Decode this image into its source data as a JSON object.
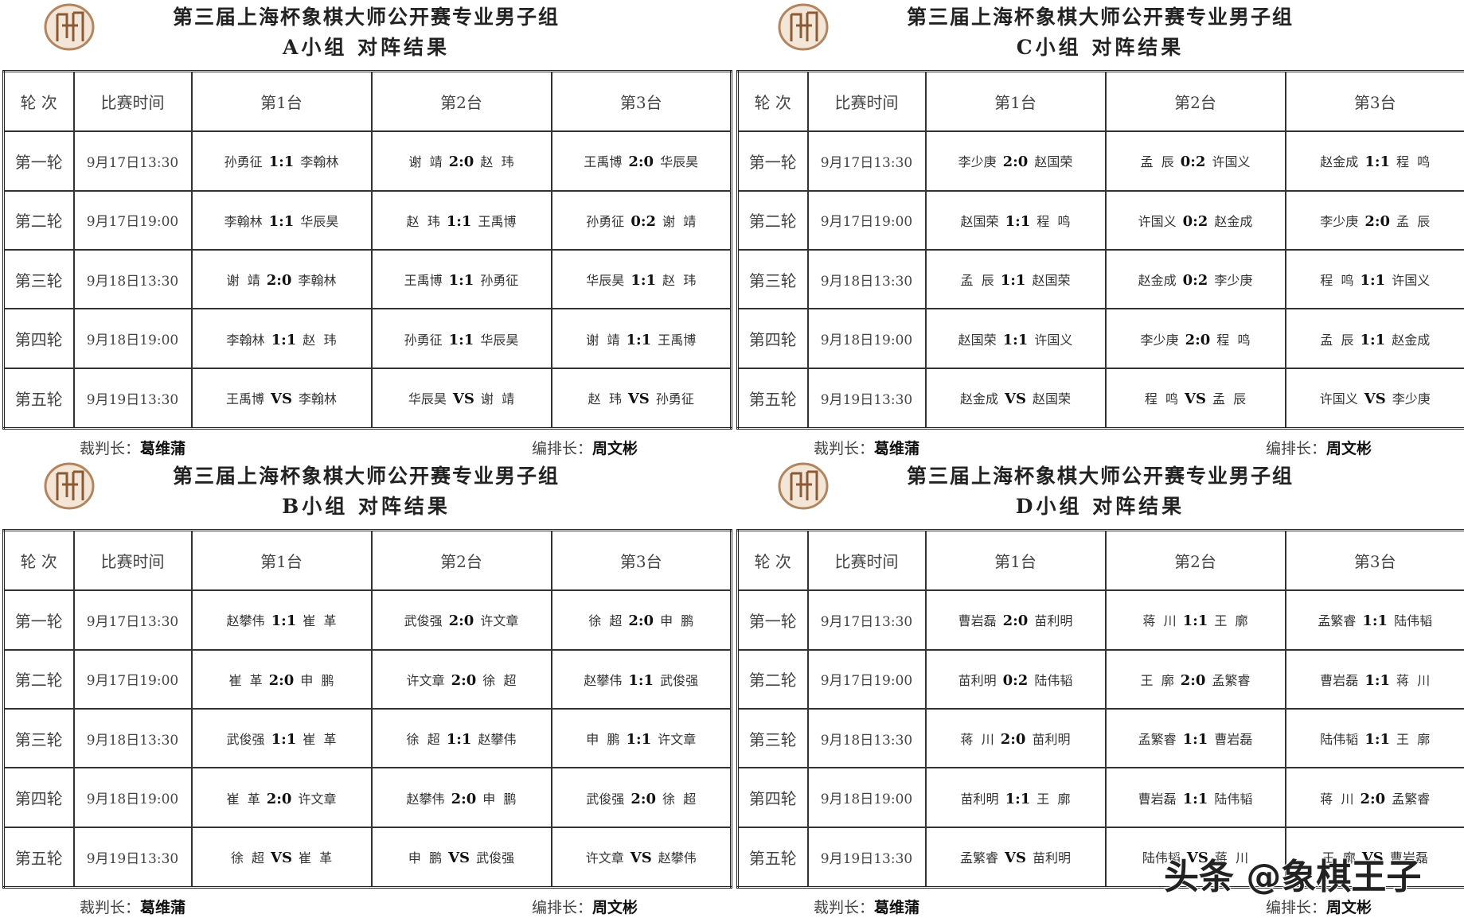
{
  "groups": [
    {
      "title": "第三届上海杯象棋大师公开赛专业男子组",
      "subtitle": "A小组 对阵结果",
      "header": [
        "轮 次",
        "比赛时间",
        "第1台",
        "第2台",
        "第3台"
      ],
      "rows": [
        {
          "round": "第一轮",
          "time": "9月17日13:30",
          "boards": [
            {
              "p1": "孙勇征",
              "score": "1:1",
              "p2": "李翰林"
            },
            {
              "p1": "谢  靖",
              "score": "2:0",
              "p2": "赵  玮"
            },
            {
              "p1": "王禹博",
              "score": "2:0",
              "p2": "华辰昊"
            }
          ]
        },
        {
          "round": "第二轮",
          "time": "9月17日19:00",
          "boards": [
            {
              "p1": "李翰林",
              "score": "1:1",
              "p2": "华辰昊"
            },
            {
              "p1": "赵  玮",
              "score": "1:1",
              "p2": "王禹博"
            },
            {
              "p1": "孙勇征",
              "score": "0:2",
              "p2": "谢  靖"
            }
          ]
        },
        {
          "round": "第三轮",
          "time": "9月18日13:30",
          "boards": [
            {
              "p1": "谢  靖",
              "score": "2:0",
              "p2": "李翰林"
            },
            {
              "p1": "王禹博",
              "score": "1:1",
              "p2": "孙勇征"
            },
            {
              "p1": "华辰昊",
              "score": "1:1",
              "p2": "赵  玮"
            }
          ]
        },
        {
          "round": "第四轮",
          "time": "9月18日19:00",
          "boards": [
            {
              "p1": "李翰林",
              "score": "1:1",
              "p2": "赵  玮"
            },
            {
              "p1": "孙勇征",
              "score": "1:1",
              "p2": "华辰昊"
            },
            {
              "p1": "谢  靖",
              "score": "1:1",
              "p2": "王禹博"
            }
          ]
        },
        {
          "round": "第五轮",
          "time": "9月19日13:30",
          "boards": [
            {
              "p1": "王禹博",
              "score": "VS",
              "p2": "李翰林"
            },
            {
              "p1": "华辰昊",
              "score": "VS",
              "p2": "谢  靖"
            },
            {
              "p1": "赵  玮",
              "score": "VS",
              "p2": "孙勇征"
            }
          ]
        }
      ],
      "referee_label": "裁判长：",
      "referee": "葛维蒲",
      "scheduler_label": "编排长：",
      "scheduler": "周文彬"
    },
    {
      "title": "第三届上海杯象棋大师公开赛专业男子组",
      "subtitle": "C小组 对阵结果",
      "header": [
        "轮 次",
        "比赛时间",
        "第1台",
        "第2台",
        "第3台"
      ],
      "rows": [
        {
          "round": "第一轮",
          "time": "9月17日13:30",
          "boards": [
            {
              "p1": "李少庚",
              "score": "2:0",
              "p2": "赵国荣"
            },
            {
              "p1": "孟  辰",
              "score": "0:2",
              "p2": "许国义"
            },
            {
              "p1": "赵金成",
              "score": "1:1",
              "p2": "程  鸣"
            }
          ]
        },
        {
          "round": "第二轮",
          "time": "9月17日19:00",
          "boards": [
            {
              "p1": "赵国荣",
              "score": "1:1",
              "p2": "程  鸣"
            },
            {
              "p1": "许国义",
              "score": "0:2",
              "p2": "赵金成"
            },
            {
              "p1": "李少庚",
              "score": "2:0",
              "p2": "孟  辰"
            }
          ]
        },
        {
          "round": "第三轮",
          "time": "9月18日13:30",
          "boards": [
            {
              "p1": "孟  辰",
              "score": "1:1",
              "p2": "赵国荣"
            },
            {
              "p1": "赵金成",
              "score": "0:2",
              "p2": "李少庚"
            },
            {
              "p1": "程  鸣",
              "score": "1:1",
              "p2": "许国义"
            }
          ]
        },
        {
          "round": "第四轮",
          "time": "9月18日19:00",
          "boards": [
            {
              "p1": "赵国荣",
              "score": "1:1",
              "p2": "许国义"
            },
            {
              "p1": "李少庚",
              "score": "2:0",
              "p2": "程  鸣"
            },
            {
              "p1": "孟  辰",
              "score": "1:1",
              "p2": "赵金成"
            }
          ]
        },
        {
          "round": "第五轮",
          "time": "9月19日13:30",
          "boards": [
            {
              "p1": "赵金成",
              "score": "VS",
              "p2": "赵国荣"
            },
            {
              "p1": "程  鸣",
              "score": "VS",
              "p2": "孟  辰"
            },
            {
              "p1": "许国义",
              "score": "VS",
              "p2": "李少庚"
            }
          ]
        }
      ],
      "referee_label": "裁判长：",
      "referee": "葛维蒲",
      "scheduler_label": "编排长：",
      "scheduler": "周文彬"
    },
    {
      "title": "第三届上海杯象棋大师公开赛专业男子组",
      "subtitle": "B小组 对阵结果",
      "header": [
        "轮 次",
        "比赛时间",
        "第1台",
        "第2台",
        "第3台"
      ],
      "rows": [
        {
          "round": "第一轮",
          "time": "9月17日13:30",
          "boards": [
            {
              "p1": "赵攀伟",
              "score": "1:1",
              "p2": "崔  革"
            },
            {
              "p1": "武俊强",
              "score": "2:0",
              "p2": "许文章"
            },
            {
              "p1": "徐  超",
              "score": "2:0",
              "p2": "申  鹏"
            }
          ]
        },
        {
          "round": "第二轮",
          "time": "9月17日19:00",
          "boards": [
            {
              "p1": "崔  革",
              "score": "2:0",
              "p2": "申  鹏"
            },
            {
              "p1": "许文章",
              "score": "2:0",
              "p2": "徐  超"
            },
            {
              "p1": "赵攀伟",
              "score": "1:1",
              "p2": "武俊强"
            }
          ]
        },
        {
          "round": "第三轮",
          "time": "9月18日13:30",
          "boards": [
            {
              "p1": "武俊强",
              "score": "1:1",
              "p2": "崔  革"
            },
            {
              "p1": "徐  超",
              "score": "1:1",
              "p2": "赵攀伟"
            },
            {
              "p1": "申  鹏",
              "score": "1:1",
              "p2": "许文章"
            }
          ]
        },
        {
          "round": "第四轮",
          "time": "9月18日19:00",
          "boards": [
            {
              "p1": "崔  革",
              "score": "2:0",
              "p2": "许文章"
            },
            {
              "p1": "赵攀伟",
              "score": "2:0",
              "p2": "申  鹏"
            },
            {
              "p1": "武俊强",
              "score": "2:0",
              "p2": "徐  超"
            }
          ]
        },
        {
          "round": "第五轮",
          "time": "9月19日13:30",
          "boards": [
            {
              "p1": "徐  超",
              "score": "VS",
              "p2": "崔  革"
            },
            {
              "p1": "申  鹏",
              "score": "VS",
              "p2": "武俊强"
            },
            {
              "p1": "许文章",
              "score": "VS",
              "p2": "赵攀伟"
            }
          ]
        }
      ],
      "referee_label": "裁判长：",
      "referee": "葛维蒲",
      "scheduler_label": "编排长：",
      "scheduler": "周文彬"
    },
    {
      "title": "第三届上海杯象棋大师公开赛专业男子组",
      "subtitle": "D小组 对阵结果",
      "header": [
        "轮 次",
        "比赛时间",
        "第1台",
        "第2台",
        "第3台"
      ],
      "rows": [
        {
          "round": "第一轮",
          "time": "9月17日13:30",
          "boards": [
            {
              "p1": "曹岩磊",
              "score": "2:0",
              "p2": "苗利明"
            },
            {
              "p1": "蒋  川",
              "score": "1:1",
              "p2": "王  廓"
            },
            {
              "p1": "孟繁睿",
              "score": "1:1",
              "p2": "陆伟韬"
            }
          ]
        },
        {
          "round": "第二轮",
          "time": "9月17日19:00",
          "boards": [
            {
              "p1": "苗利明",
              "score": "0:2",
              "p2": "陆伟韬"
            },
            {
              "p1": "王  廓",
              "score": "2:0",
              "p2": "孟繁睿"
            },
            {
              "p1": "曹岩磊",
              "score": "1:1",
              "p2": "蒋  川"
            }
          ]
        },
        {
          "round": "第三轮",
          "time": "9月18日13:30",
          "boards": [
            {
              "p1": "蒋  川",
              "score": "2:0",
              "p2": "苗利明"
            },
            {
              "p1": "孟繁睿",
              "score": "1:1",
              "p2": "曹岩磊"
            },
            {
              "p1": "陆伟韬",
              "score": "1:1",
              "p2": "王  廓"
            }
          ]
        },
        {
          "round": "第四轮",
          "time": "9月18日19:00",
          "boards": [
            {
              "p1": "苗利明",
              "score": "1:1",
              "p2": "王  廓"
            },
            {
              "p1": "曹岩磊",
              "score": "1:1",
              "p2": "陆伟韬"
            },
            {
              "p1": "蒋  川",
              "score": "2:0",
              "p2": "孟繁睿"
            }
          ]
        },
        {
          "round": "第五轮",
          "time": "9月19日13:30",
          "boards": [
            {
              "p1": "孟繁睿",
              "score": "VS",
              "p2": "苗利明"
            },
            {
              "p1": "陆伟韬",
              "score": "VS",
              "p2": "蒋  川"
            },
            {
              "p1": "王  廓",
              "score": "VS",
              "p2": "曹岩磊"
            }
          ]
        }
      ],
      "referee_label": "裁判长：",
      "referee": "葛维蒲",
      "scheduler_label": "编排长：",
      "scheduler": "周文彬"
    }
  ],
  "watermark": "头条 @象棋王子"
}
